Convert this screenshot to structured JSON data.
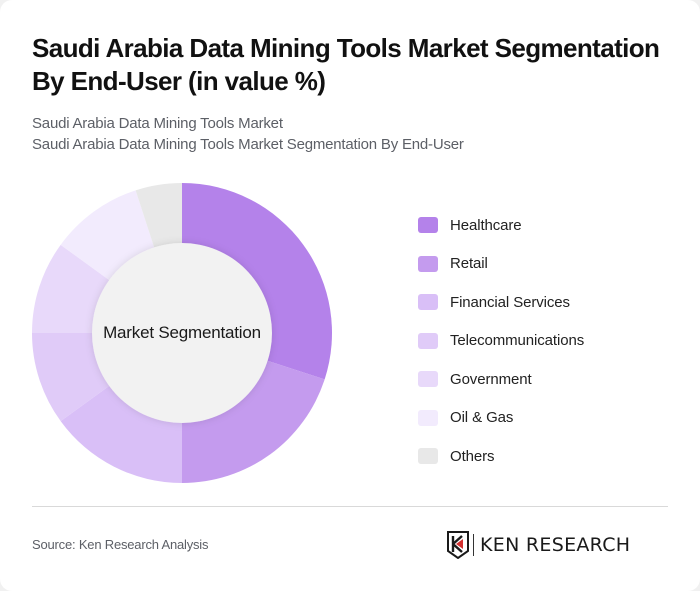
{
  "header": {
    "title": "Saudi Arabia Data Mining Tools Market Segmentation By End-User (in value %)",
    "subtitle_line1": "Saudi Arabia Data Mining Tools Market",
    "subtitle_line2": "Saudi Arabia Data Mining Tools Market Segmentation By End-User"
  },
  "donut": {
    "center_label": "Market Segmentation"
  },
  "legend": [
    {
      "label": "Healthcare",
      "color": "#b482ea"
    },
    {
      "label": "Retail",
      "color": "#c49bee"
    },
    {
      "label": "Financial Services",
      "color": "#d9bff7"
    },
    {
      "label": "Telecommunications",
      "color": "#e0cbf8"
    },
    {
      "label": "Government",
      "color": "#e8d9fa"
    },
    {
      "label": "Oil & Gas",
      "color": "#f2ebfd"
    },
    {
      "label": "Others",
      "color": "#e8e8e8"
    }
  ],
  "footer": {
    "source": "Source: Ken Research Analysis",
    "logo_text": "KEN RESEARCH"
  },
  "chart_data": {
    "type": "pie",
    "variant": "donut",
    "title": "Saudi Arabia Data Mining Tools Market Segmentation By End-User (in value %)",
    "subtitle": "Saudi Arabia Data Mining Tools Market Segmentation By End-User",
    "center_label": "Market Segmentation",
    "categories": [
      "Healthcare",
      "Retail",
      "Financial Services",
      "Telecommunications",
      "Government",
      "Oil & Gas",
      "Others"
    ],
    "values": [
      30,
      20,
      15,
      10,
      10,
      10,
      5
    ],
    "colors": [
      "#b482ea",
      "#c49bee",
      "#d9bff7",
      "#e0cbf8",
      "#e8d9fa",
      "#f2ebfd",
      "#e8e8e8"
    ],
    "start_angle": "12 o'clock",
    "direction": "clockwise",
    "legend_position": "right",
    "unit": "%"
  }
}
